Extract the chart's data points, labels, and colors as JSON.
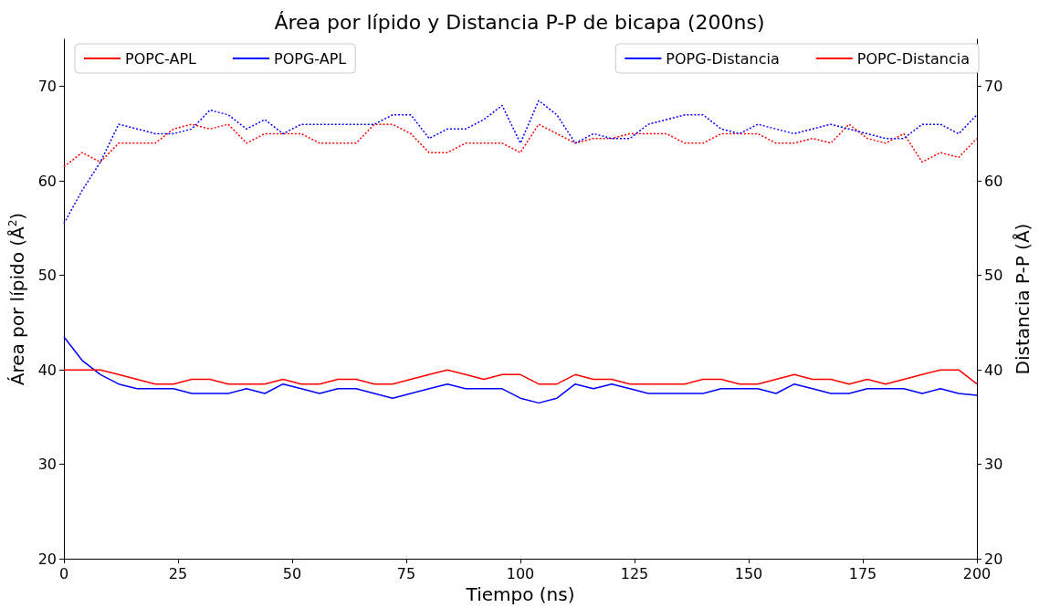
{
  "chart_data": {
    "type": "line",
    "title": "Área por lípido y Distancia P-P de bicapa (200ns)",
    "xlabel": "Tiempo (ns)",
    "ylabel": "Área por lípido (Å$^{2}$)",
    "y2label": "Distancia P-P (Å)",
    "x": [
      0,
      4,
      8,
      12,
      16,
      20,
      24,
      28,
      32,
      36,
      40,
      44,
      48,
      52,
      56,
      60,
      64,
      68,
      72,
      76,
      80,
      84,
      88,
      92,
      96,
      100,
      104,
      108,
      112,
      116,
      120,
      124,
      128,
      132,
      136,
      140,
      144,
      148,
      152,
      156,
      160,
      164,
      168,
      172,
      176,
      180,
      184,
      188,
      192,
      196,
      200
    ],
    "xlim": [
      0,
      200
    ],
    "xticks": [
      0,
      25,
      50,
      75,
      100,
      125,
      150,
      175,
      200
    ],
    "ylim": [
      20,
      75
    ],
    "yticks": [
      20,
      30,
      40,
      50,
      60,
      70
    ],
    "y2lim": [
      20,
      75
    ],
    "y2ticks": [
      20,
      30,
      40,
      50,
      60,
      70
    ],
    "grid": false,
    "legend": "top",
    "marker": "none",
    "series": [
      {
        "name": "POPC-APL",
        "color": "#ff0000",
        "line_style": "dotted",
        "values": [
          61.5,
          63,
          62,
          64,
          64,
          64,
          65.5,
          66,
          65.5,
          66,
          64,
          65,
          65,
          65,
          64,
          64,
          64,
          66,
          66,
          65,
          63,
          63,
          64,
          64,
          64,
          63,
          66,
          65,
          64,
          64.5,
          64.5,
          65,
          65,
          65,
          64,
          64,
          65,
          65,
          65,
          64,
          64,
          64.5,
          64,
          66,
          64.5,
          64,
          65,
          62,
          63,
          62.5,
          64.5
        ]
      },
      {
        "name": "POPG-APL",
        "color": "#0000ff",
        "line_style": "dotted",
        "values": [
          55.5,
          59,
          62,
          66,
          65.5,
          65,
          65,
          65.5,
          67.5,
          67,
          65.5,
          66.5,
          65,
          66,
          66,
          66,
          66,
          66,
          67,
          67,
          64.5,
          65.5,
          65.5,
          66.5,
          68,
          64,
          68.5,
          67,
          64,
          65,
          64.5,
          64.5,
          66,
          66.5,
          67,
          67,
          65.5,
          65,
          66,
          65.5,
          65,
          65.5,
          66,
          65.5,
          65,
          64.5,
          64.5,
          66,
          66,
          65,
          67
        ]
      },
      {
        "name": "POPG-Distancia",
        "color": "#0000ff",
        "line_style": "solid",
        "axis": "y2",
        "values": [
          43.5,
          41,
          39.5,
          38.5,
          38,
          38,
          38,
          37.5,
          37.5,
          37.5,
          38,
          37.5,
          38.5,
          38,
          37.5,
          38,
          38,
          37.5,
          37,
          37.5,
          38,
          38.5,
          38,
          38,
          38,
          37,
          36.5,
          37,
          38.5,
          38,
          38.5,
          38,
          37.5,
          37.5,
          37.5,
          37.5,
          38,
          38,
          38,
          37.5,
          38.5,
          38,
          37.5,
          37.5,
          38,
          38,
          38,
          37.5,
          38,
          37.5,
          37.3
        ]
      },
      {
        "name": "POPC-Distancia",
        "color": "#ff0000",
        "line_style": "solid",
        "axis": "y2",
        "values": [
          40,
          40,
          40,
          39.5,
          39,
          38.5,
          38.5,
          39,
          39,
          38.5,
          38.5,
          38.5,
          39,
          38.5,
          38.5,
          39,
          39,
          38.5,
          38.5,
          39,
          39.5,
          40,
          39.5,
          39,
          39.5,
          39.5,
          38.5,
          38.5,
          39.5,
          39,
          39,
          38.5,
          38.5,
          38.5,
          38.5,
          39,
          39,
          38.5,
          38.5,
          39,
          39.5,
          39,
          39,
          38.5,
          39,
          38.5,
          39,
          39.5,
          40,
          40,
          38.5
        ]
      }
    ]
  }
}
